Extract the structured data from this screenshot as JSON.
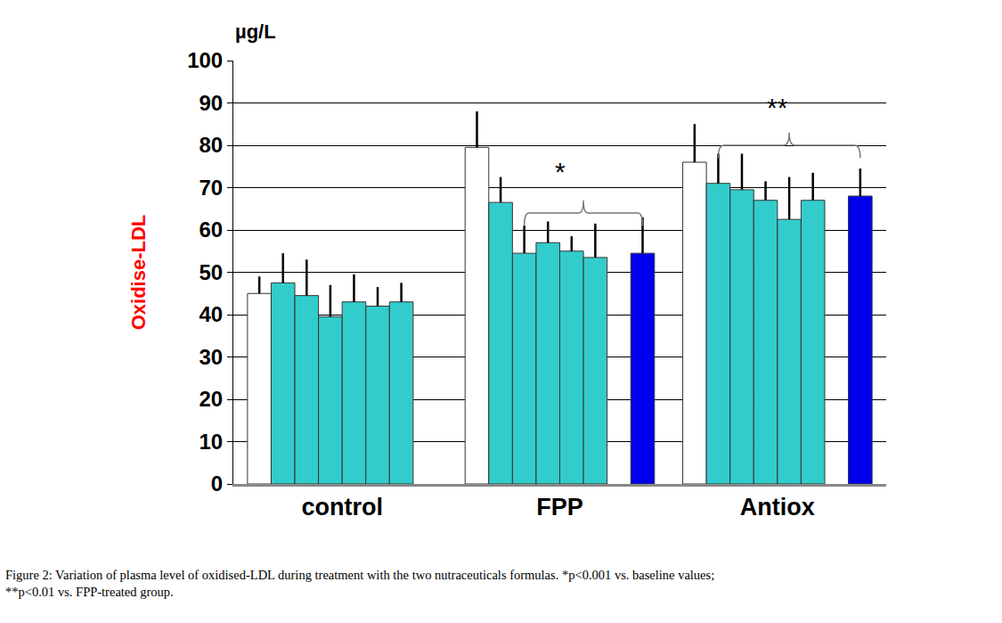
{
  "chart_data": {
    "type": "bar",
    "y_label": "Oxidise-LDL",
    "y_unit": "µg/L",
    "categories": [
      "control",
      "FPP",
      "Antiox"
    ],
    "series": [
      {
        "color": "#ffffff",
        "values": [
          45,
          79.5,
          76
        ],
        "errors": [
          4,
          8.5,
          9
        ]
      },
      {
        "color": "#33cccc",
        "values": [
          47.5,
          66.5,
          71
        ],
        "errors": [
          7,
          6,
          7
        ]
      },
      {
        "color": "#33cccc",
        "values": [
          44.5,
          54.5,
          69.5
        ],
        "errors": [
          8.5,
          6.5,
          8.5
        ]
      },
      {
        "color": "#33cccc",
        "values": [
          39.5,
          57,
          67
        ],
        "errors": [
          7.5,
          5,
          4.5
        ]
      },
      {
        "color": "#33cccc",
        "values": [
          43,
          55,
          62.5
        ],
        "errors": [
          6.5,
          3.5,
          10
        ]
      },
      {
        "color": "#33cccc",
        "values": [
          42,
          53.5,
          67
        ],
        "errors": [
          4.5,
          8,
          6.5
        ]
      },
      {
        "color": "#33cccc",
        "values": [
          43,
          null,
          null
        ],
        "errors": [
          4.5,
          null,
          null
        ]
      },
      {
        "color": "#0000ee",
        "values": [
          null,
          54.5,
          68
        ],
        "errors": [
          null,
          8.5,
          6.5
        ]
      }
    ],
    "ylim": [
      0,
      100
    ],
    "yticks": [
      0,
      10,
      20,
      30,
      40,
      50,
      60,
      70,
      80,
      90,
      100
    ],
    "grid": true,
    "legend": false,
    "annotations": [
      {
        "text": "*",
        "category": "FPP",
        "y": 70,
        "bracket_y": 64,
        "series_span": [
          2,
          7
        ]
      },
      {
        "text": "**",
        "category": "Antiox",
        "y": 85,
        "bracket_y": 80,
        "series_span": [
          1,
          7
        ]
      }
    ],
    "caption": [
      "Figure 2: Variation of plasma level of oxidised-LDL during treatment with the two nutraceuticals formulas. *p<0.001 vs. baseline values;",
      "**p<0.01 vs. FPP-treated group."
    ]
  }
}
